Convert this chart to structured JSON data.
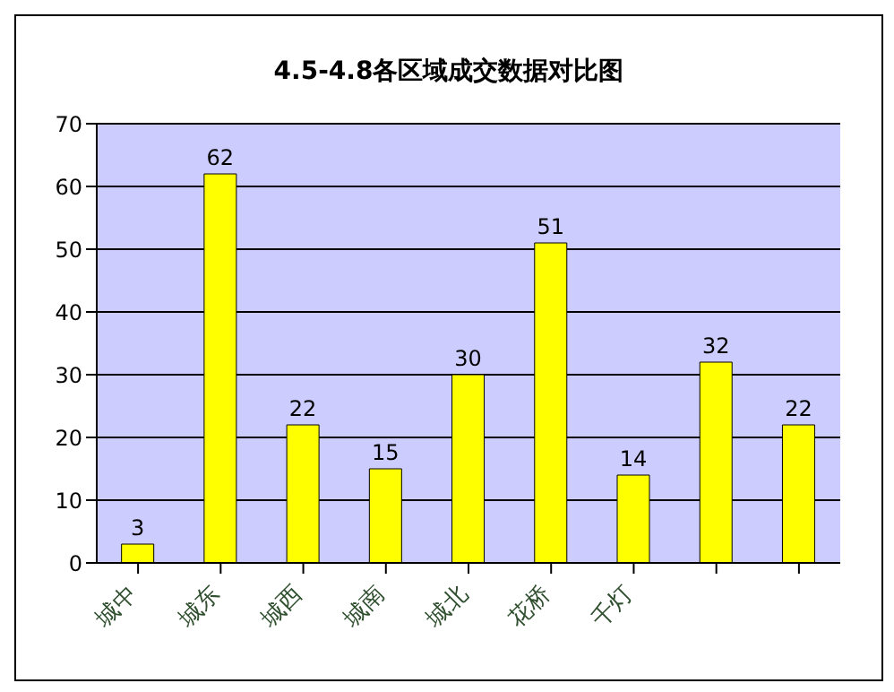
{
  "chart_data": {
    "type": "bar",
    "title": "4.5-4.8各区域成交数据对比图",
    "categories": [
      "城中",
      "城东",
      "城西",
      "城南",
      "城北",
      "花桥",
      "千灯",
      null,
      null
    ],
    "values": [
      3,
      62,
      22,
      15,
      30,
      51,
      14,
      32,
      22
    ],
    "color": "#ffff00",
    "ylim": [
      0,
      70
    ],
    "yticks": [
      0,
      10,
      20,
      30,
      40,
      50,
      60,
      70
    ],
    "grid": "y",
    "data_labels": true
  }
}
